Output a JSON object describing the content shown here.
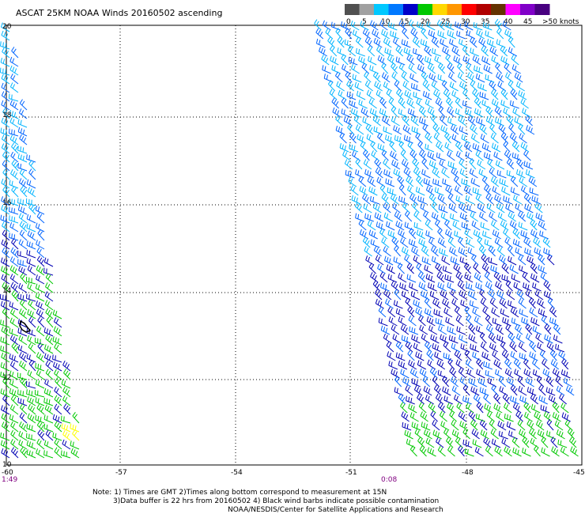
{
  "title": "ASCAT 25KM NOAA Winds 20160502 ascending",
  "legend": {
    "labels": [
      "0",
      "5",
      "10",
      "15",
      "20",
      "25",
      "30",
      "35",
      "40",
      "45",
      ">50 knots"
    ],
    "colors": [
      "#505050",
      "#a0a0a0",
      "#00c8ff",
      "#0078ff",
      "#0000c8",
      "#00c800",
      "#ffd800",
      "#ff9600",
      "#ff0000",
      "#b00000",
      "#643200",
      "#ff00ff",
      "#8000c8",
      "#480080"
    ]
  },
  "axes": {
    "longitude_labels": [
      "-60",
      "-57",
      "-54",
      "-51",
      "-48",
      "-45"
    ],
    "latitude_labels": [
      "20",
      "18",
      "16",
      "14",
      "12",
      "10"
    ]
  },
  "pass_times": [
    "1:49",
    "0:08"
  ],
  "notes": [
    "Note: 1) Times are GMT 2)Times along bottom correspond to measurement at 15N",
    "3)Data buffer is 22 hrs from 20160502 4) Black wind barbs indicate possible contamination",
    "NOAA/NESDIS/Center for Satellite Applications and Research"
  ],
  "wind_colors": {
    "light_blue": "#00b4ff",
    "blue": "#0064ff",
    "dark_blue": "#0000b4",
    "green": "#00c800",
    "yellow": "#ffff00",
    "contamination": "#000000"
  }
}
